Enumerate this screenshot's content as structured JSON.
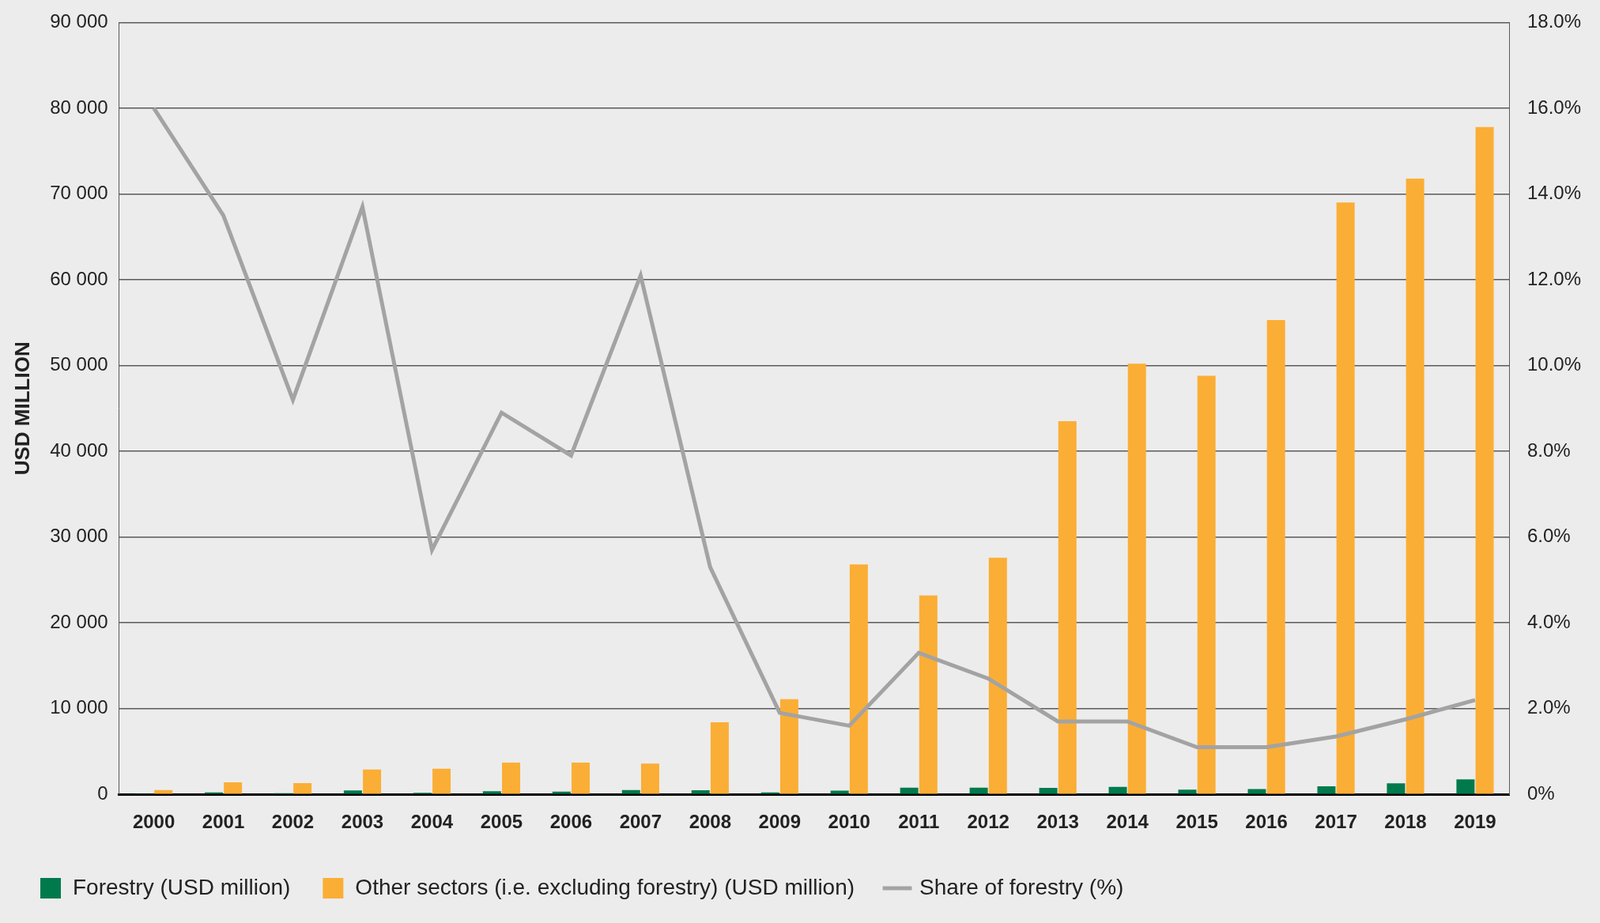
{
  "chart_data": {
    "type": "bar",
    "y_label": "USD MILLION",
    "categories": [
      "2000",
      "2001",
      "2002",
      "2003",
      "2004",
      "2005",
      "2006",
      "2007",
      "2008",
      "2009",
      "2010",
      "2011",
      "2012",
      "2013",
      "2014",
      "2015",
      "2016",
      "2017",
      "2018",
      "2019"
    ],
    "series": [
      {
        "name": "Forestry (USD million)",
        "type": "bar",
        "color": "#007a4d",
        "values": [
          95,
          220,
          130,
          460,
          180,
          360,
          320,
          500,
          470,
          215,
          440,
          790,
          770,
          750,
          870,
          540,
          620,
          940,
          1280,
          1750
        ]
      },
      {
        "name": "Other sectors (i.e. excluding forestry) (USD million)",
        "type": "bar",
        "color": "#fbae35",
        "values": [
          500,
          1400,
          1300,
          2900,
          3000,
          3700,
          3700,
          3600,
          8400,
          11100,
          26800,
          23200,
          27600,
          43500,
          50200,
          48800,
          55300,
          69000,
          71800,
          77800
        ]
      },
      {
        "name": "Share of forestry (%)",
        "type": "line",
        "axis": "y2",
        "color": "#a3a3a3",
        "values": [
          16.0,
          13.5,
          9.2,
          13.7,
          5.7,
          8.9,
          7.9,
          12.1,
          5.3,
          1.9,
          1.6,
          3.3,
          2.7,
          1.7,
          1.7,
          1.1,
          1.1,
          1.35,
          1.75,
          2.2
        ]
      }
    ],
    "ylim": [
      0,
      90000
    ],
    "yticks": [
      0,
      {
        "value": 10000,
        "label": "10 000"
      },
      {
        "value": 20000,
        "label": "20 000"
      },
      {
        "value": 30000,
        "label": "30 000"
      },
      {
        "value": 40000,
        "label": "40 000"
      },
      {
        "value": 50000,
        "label": "50 000"
      },
      {
        "value": 60000,
        "label": "60 000"
      },
      {
        "value": 70000,
        "label": "70 000"
      },
      {
        "value": 80000,
        "label": "80 000"
      },
      {
        "value": 90000,
        "label": "90 000"
      }
    ],
    "y2lim": [
      0,
      18
    ],
    "y2ticks": [
      {
        "value": 0,
        "label": "0%"
      },
      {
        "value": 2,
        "label": "2.0%"
      },
      {
        "value": 4,
        "label": "4.0%"
      },
      {
        "value": 6,
        "label": "6.0%"
      },
      {
        "value": 8,
        "label": "8.0%"
      },
      {
        "value": 10,
        "label": "10.0%"
      },
      {
        "value": 12,
        "label": "12.0%"
      },
      {
        "value": 14,
        "label": "14.0%"
      },
      {
        "value": 16,
        "label": "16.0%"
      },
      {
        "value": 18,
        "label": "18.0%"
      }
    ],
    "grid": true,
    "legend": "bottom"
  }
}
